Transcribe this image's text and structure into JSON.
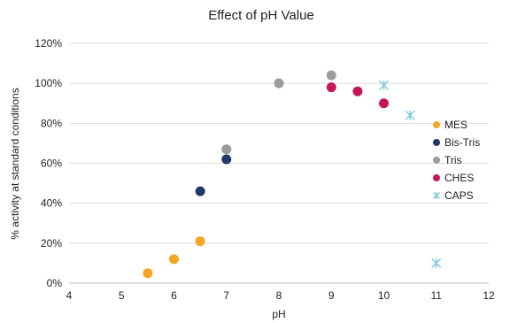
{
  "chart_data": {
    "type": "scatter",
    "title": "Effect of pH Value",
    "xlabel": "pH",
    "ylabel": "% activity at standard conditions",
    "xlim": [
      4,
      12
    ],
    "ylim": [
      0,
      120
    ],
    "x_ticks": [
      "4",
      "5",
      "6",
      "7",
      "8",
      "9",
      "10",
      "11",
      "12"
    ],
    "y_ticks": [
      "0%",
      "20%",
      "40%",
      "60%",
      "80%",
      "100%",
      "120%"
    ],
    "grid": "horizontal",
    "legend_position": "right",
    "series": [
      {
        "name": "MES",
        "color": "#F5A623",
        "marker": "circle",
        "x": [
          5.5,
          6.0,
          6.5
        ],
        "y": [
          5,
          12,
          21
        ]
      },
      {
        "name": "Bis-Tris",
        "color": "#1F3A68",
        "marker": "circle",
        "x": [
          6.5,
          7.0
        ],
        "y": [
          46,
          62
        ]
      },
      {
        "name": "Tris",
        "color": "#9B9B9B",
        "marker": "circle",
        "x": [
          7.0,
          8.0,
          9.0
        ],
        "y": [
          67,
          100,
          104
        ]
      },
      {
        "name": "CHES",
        "color": "#C2185B",
        "marker": "circle",
        "x": [
          9.0,
          9.5,
          10.0
        ],
        "y": [
          98,
          96,
          90
        ]
      },
      {
        "name": "CAPS",
        "color": "#7EC8E3",
        "marker": "star",
        "x": [
          10.0,
          10.5,
          11.0
        ],
        "y": [
          99,
          84,
          10
        ]
      }
    ]
  }
}
